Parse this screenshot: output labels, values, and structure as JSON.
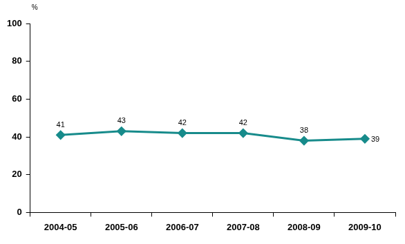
{
  "chart_data": {
    "type": "line",
    "ylabel": "%",
    "categories": [
      "2004-05",
      "2005-06",
      "2006-07",
      "2007-08",
      "2008-09",
      "2009-10"
    ],
    "values": [
      41,
      43,
      42,
      42,
      38,
      39
    ],
    "color": "#178b8b",
    "marker": "diamond",
    "ylim": [
      0,
      100
    ],
    "yticks": [
      0,
      20,
      40,
      60,
      80,
      100
    ],
    "grid": false,
    "data_labels": true
  }
}
